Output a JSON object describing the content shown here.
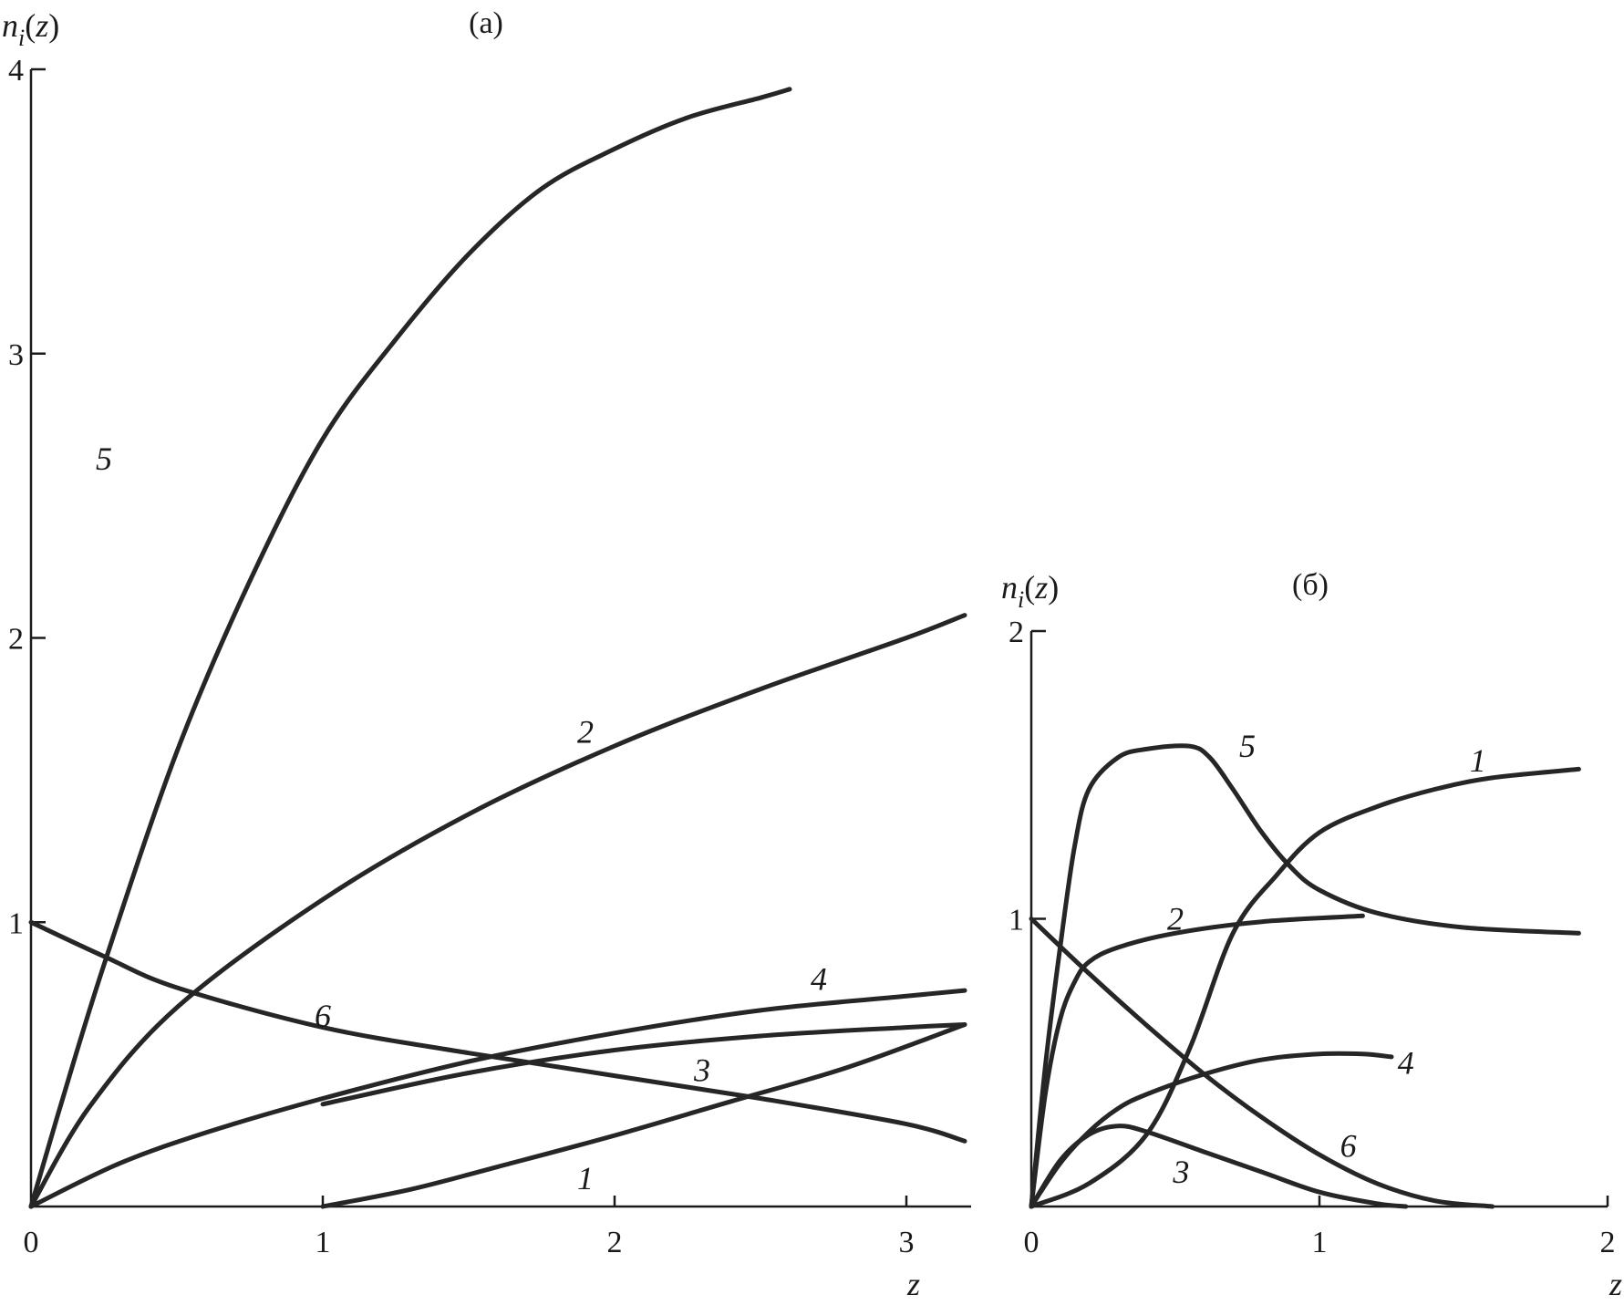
{
  "chart_data": [
    {
      "type": "line",
      "panel_label": "(a)",
      "ylabel": "n_i(z)",
      "xlabel": "z",
      "xlim": [
        0,
        3.2
      ],
      "ylim": [
        0,
        4
      ],
      "x_ticks": [
        {
          "value": 0,
          "label": "0"
        },
        {
          "value": 1,
          "label": "1"
        },
        {
          "value": 2,
          "label": "2"
        },
        {
          "value": 3,
          "label": "3"
        }
      ],
      "y_ticks": [
        {
          "value": 1,
          "label": "1"
        },
        {
          "value": 2,
          "label": "2"
        },
        {
          "value": 3,
          "label": "3"
        },
        {
          "value": 4,
          "label": "4"
        }
      ],
      "grid": false,
      "series": [
        {
          "name": "1",
          "label_at": [
            1.9,
            0.1
          ],
          "x": [
            1.0,
            1.3,
            1.6,
            2.0,
            2.4,
            2.8,
            3.2
          ],
          "y": [
            0.0,
            0.06,
            0.14,
            0.25,
            0.37,
            0.49,
            0.64
          ]
        },
        {
          "name": "2",
          "label_at": [
            1.9,
            1.67
          ],
          "x": [
            0.0,
            0.2,
            0.5,
            1.0,
            1.5,
            2.0,
            2.5,
            3.0,
            3.2
          ],
          "y": [
            0.0,
            0.35,
            0.7,
            1.08,
            1.38,
            1.62,
            1.82,
            2.0,
            2.08
          ]
        },
        {
          "name": "3",
          "label_at": [
            2.3,
            0.48
          ],
          "x": [
            1.0,
            1.5,
            2.0,
            2.5,
            3.0,
            3.2
          ],
          "y": [
            0.36,
            0.47,
            0.55,
            0.6,
            0.63,
            0.64
          ]
        },
        {
          "name": "4",
          "label_at": [
            2.7,
            0.8
          ],
          "x": [
            0.0,
            0.3,
            0.6,
            1.0,
            1.5,
            2.0,
            2.5,
            3.0,
            3.2
          ],
          "y": [
            0.0,
            0.15,
            0.26,
            0.38,
            0.51,
            0.61,
            0.69,
            0.74,
            0.76
          ]
        },
        {
          "name": "5",
          "label_at": [
            0.25,
            2.63
          ],
          "x": [
            0.0,
            0.1,
            0.25,
            0.5,
            0.75,
            1.0,
            1.25,
            1.5,
            1.75,
            2.0,
            2.25,
            2.5,
            2.6
          ],
          "y": [
            0.0,
            0.35,
            0.85,
            1.6,
            2.2,
            2.7,
            3.05,
            3.35,
            3.58,
            3.72,
            3.83,
            3.9,
            3.93
          ]
        },
        {
          "name": "6",
          "label_at": [
            1.0,
            0.67
          ],
          "x": [
            0.0,
            0.25,
            0.5,
            1.0,
            1.5,
            2.0,
            2.5,
            3.0,
            3.2
          ],
          "y": [
            1.0,
            0.88,
            0.77,
            0.63,
            0.54,
            0.46,
            0.38,
            0.29,
            0.23
          ]
        }
      ]
    },
    {
      "type": "line",
      "panel_label": "(б)",
      "ylabel": "n_i(z)",
      "xlabel": "z",
      "xlim": [
        0,
        2
      ],
      "ylim": [
        0,
        2
      ],
      "x_ticks": [
        {
          "value": 0,
          "label": "0"
        },
        {
          "value": 1,
          "label": "1"
        },
        {
          "value": 2,
          "label": "2"
        }
      ],
      "y_ticks": [
        {
          "value": 1,
          "label": "1"
        },
        {
          "value": 2,
          "label": "2"
        }
      ],
      "grid": false,
      "series": [
        {
          "name": "1",
          "label_at": [
            1.55,
            1.55
          ],
          "x": [
            0.0,
            0.2,
            0.4,
            0.55,
            0.7,
            0.85,
            1.0,
            1.2,
            1.4,
            1.6,
            1.9
          ],
          "y": [
            0.0,
            0.08,
            0.25,
            0.55,
            0.95,
            1.15,
            1.3,
            1.39,
            1.45,
            1.49,
            1.52
          ]
        },
        {
          "name": "2",
          "label_at": [
            0.5,
            1.0
          ],
          "x": [
            0.0,
            0.05,
            0.1,
            0.15,
            0.2,
            0.3,
            0.5,
            0.8,
            1.15
          ],
          "y": [
            0.0,
            0.4,
            0.65,
            0.78,
            0.85,
            0.9,
            0.95,
            0.99,
            1.01
          ]
        },
        {
          "name": "3",
          "label_at": [
            0.52,
            0.12
          ],
          "x": [
            0.0,
            0.1,
            0.2,
            0.3,
            0.4,
            0.6,
            0.8,
            1.0,
            1.2,
            1.3
          ],
          "y": [
            0.0,
            0.16,
            0.25,
            0.28,
            0.26,
            0.19,
            0.12,
            0.05,
            0.01,
            0.0
          ]
        },
        {
          "name": "4",
          "label_at": [
            1.3,
            0.5
          ],
          "x": [
            0.0,
            0.1,
            0.2,
            0.3,
            0.4,
            0.6,
            0.8,
            1.0,
            1.15,
            1.25
          ],
          "y": [
            0.0,
            0.15,
            0.26,
            0.34,
            0.39,
            0.46,
            0.51,
            0.53,
            0.53,
            0.52
          ]
        },
        {
          "name": "5",
          "label_at": [
            0.75,
            1.6
          ],
          "x": [
            0.0,
            0.05,
            0.1,
            0.15,
            0.2,
            0.3,
            0.4,
            0.55,
            0.62,
            0.7,
            0.8,
            0.9,
            1.0,
            1.2,
            1.5,
            1.9
          ],
          "y": [
            0.0,
            0.5,
            0.9,
            1.25,
            1.45,
            1.56,
            1.59,
            1.6,
            1.56,
            1.45,
            1.3,
            1.18,
            1.1,
            1.02,
            0.97,
            0.95
          ]
        },
        {
          "name": "6",
          "label_at": [
            1.1,
            0.21
          ],
          "x": [
            0.0,
            0.2,
            0.4,
            0.6,
            0.8,
            1.0,
            1.2,
            1.4,
            1.6
          ],
          "y": [
            1.0,
            0.81,
            0.63,
            0.46,
            0.31,
            0.18,
            0.08,
            0.02,
            0.0
          ]
        }
      ]
    }
  ]
}
